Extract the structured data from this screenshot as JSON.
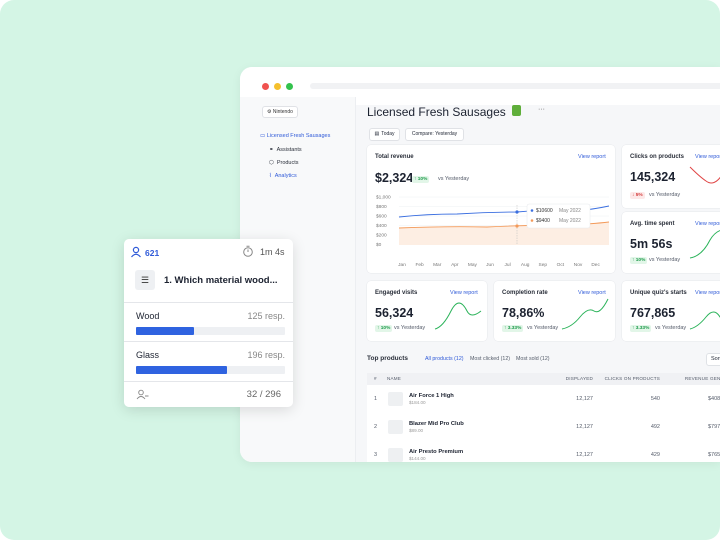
{
  "sidebar": {
    "brand": "Nintendo",
    "store": "Licensed Fresh Sausages",
    "nav": [
      "Assistants",
      "Products",
      "Analytics"
    ]
  },
  "header": {
    "title": "Licensed Fresh Sausages",
    "more": "···",
    "filters": [
      "Today",
      "Compare: Yesterday"
    ]
  },
  "cards": [
    {
      "title": "Total revenue",
      "link": "View report",
      "value": "$2,324",
      "change": "↑ 10%",
      "compare": "vs Yesterday"
    },
    {
      "title": "Clicks on products",
      "link": "View report",
      "value": "145,324",
      "change": "↓ 5%",
      "compare": "vs Yesterday"
    },
    {
      "title": "Avg. time spent",
      "link": "View report",
      "value": "5m 56s",
      "change": "↑ 10%",
      "compare": "vs Yesterday"
    },
    {
      "title": "Engaged visits",
      "link": "View report",
      "value": "56,324",
      "change": "↑ 10%",
      "compare": "vs Yesterday"
    },
    {
      "title": "Completion rate",
      "link": "View report",
      "value": "78,86%",
      "change": "↑ 3.33%",
      "compare": "vs Yesterday"
    },
    {
      "title": "Unique quiz's starts",
      "link": "View report",
      "value": "767,865",
      "change": "↑ 3.33%",
      "compare": "vs Yesterday"
    }
  ],
  "revenue_chart": {
    "yticks": [
      "$1,000",
      "$800",
      "$600",
      "$400",
      "$200",
      "$0"
    ],
    "months": [
      "Jan",
      "Feb",
      "Mar",
      "Apr",
      "May",
      "Jun",
      "Jul",
      "Aug",
      "Sep",
      "Oct",
      "Nov",
      "Dec"
    ],
    "tooltip": [
      {
        "value": "$10600",
        "date": "May 2022"
      },
      {
        "value": "$9400",
        "date": "May 2022"
      }
    ]
  },
  "top_products": {
    "title": "Top products",
    "tabs": [
      "All products (12)",
      "Most clicked (12)",
      "Most sold (12)"
    ],
    "sort": "Sort",
    "columns": [
      "#",
      "NAME",
      "DISPLAYED",
      "CLICKS ON PRODUCTS",
      "REVENUE GENERATED"
    ],
    "rows": [
      {
        "rank": "1",
        "name": "Air Force 1 High",
        "price": "$184.00",
        "displayed": "12,127",
        "clicks": "540",
        "revenue": "$408"
      },
      {
        "rank": "2",
        "name": "Blazer Mid Pro Club",
        "price": "$89.00",
        "displayed": "12,127",
        "clicks": "492",
        "revenue": "$797"
      },
      {
        "rank": "3",
        "name": "Air Presto Premium",
        "price": "$144.00",
        "displayed": "12,127",
        "clicks": "429",
        "revenue": "$765"
      }
    ]
  },
  "quiz_card": {
    "responses": "621",
    "time": "1m 4s",
    "question": "1. Which material wood...",
    "options": [
      {
        "label": "Wood",
        "responses": "125 resp."
      },
      {
        "label": "Glass",
        "responses": "196 resp."
      }
    ],
    "progress": "32 / 296"
  }
}
